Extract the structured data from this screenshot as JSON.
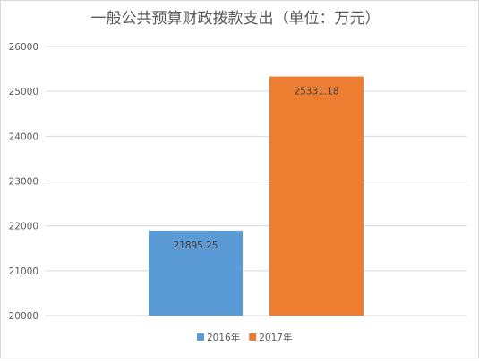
{
  "chart_data": {
    "type": "bar",
    "title": "一般公共预算财政拨款支出（单位：万元）",
    "xlabel": "",
    "ylabel": "",
    "categories": [
      ""
    ],
    "series": [
      {
        "name": "2016年",
        "values": [
          21895.25
        ],
        "label": "21895.25",
        "color": "#5b9bd5"
      },
      {
        "name": "2017年",
        "values": [
          25331.18
        ],
        "label": "25331.18",
        "color": "#ed7d31"
      }
    ],
    "ylim": [
      20000,
      26000
    ],
    "y_ticks": [
      "20000",
      "21000",
      "22000",
      "23000",
      "24000",
      "25000",
      "26000"
    ],
    "grid": true,
    "legend": "bottom"
  }
}
